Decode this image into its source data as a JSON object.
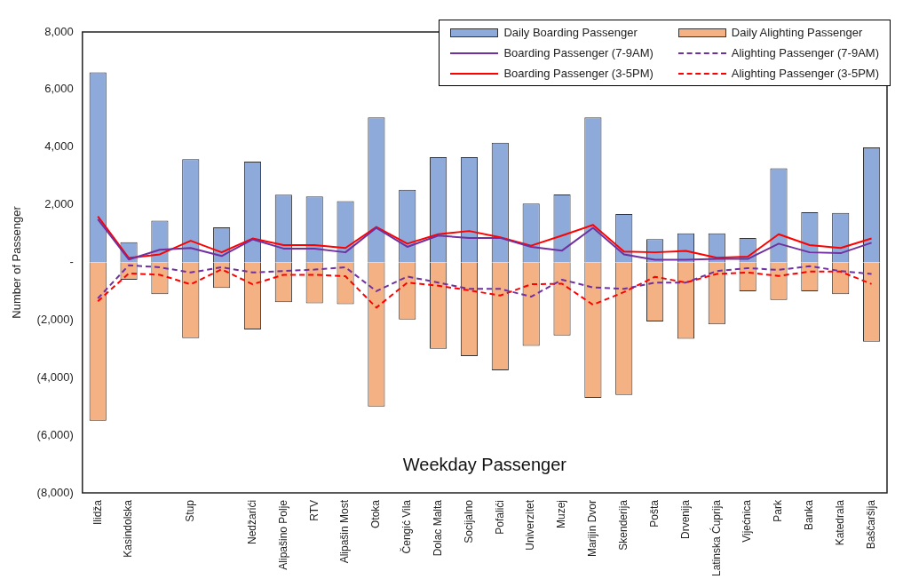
{
  "chart_data": {
    "type": "bar",
    "title": "Weekday Passenger",
    "ylabel": "Number of Passenger",
    "categories": [
      "Ilidža",
      "Kasindolska",
      null,
      "Stup",
      null,
      "Nedžarići",
      "Alipašino Polje",
      "RTV",
      "Alipašin Most",
      "Otoka",
      "Čengić Vila",
      "Dolac Malta",
      "Socijalno",
      "Pofalići",
      "Univerzitet",
      "Muzej",
      "Marijin Dvor",
      "Skenderija",
      "Pošta",
      "Drvenija",
      "Latinska Ćuprija",
      "Vijećnica",
      "Park",
      "Banka",
      "Katedrala",
      "Baščaršija"
    ],
    "series": [
      {
        "name": "Daily Boarding Passenger",
        "color": "#8eaadb",
        "values": [
          6600,
          700,
          1450,
          3580,
          1220,
          3500,
          2350,
          2290,
          2130,
          5030,
          2520,
          3650,
          3650,
          4150,
          2040,
          2360,
          5030,
          1680,
          810,
          1010,
          1010,
          850,
          3270,
          1740,
          1720,
          3990
        ]
      },
      {
        "name": "Daily Alighting Passenger",
        "color": "#f4b183",
        "values": [
          -5500,
          -600,
          -1100,
          -2630,
          -890,
          -2330,
          -1380,
          -1420,
          -1450,
          -5000,
          -1980,
          -3000,
          -3250,
          -3750,
          -2900,
          -2540,
          -4700,
          -4600,
          -2050,
          -2650,
          -2150,
          -1000,
          -1300,
          -1000,
          -1100,
          -2750
        ]
      },
      {
        "name": "Boarding Passenger (7-9AM)",
        "type": "line",
        "line_style": "solid",
        "color": "#7030a0",
        "values": [
          1500,
          100,
          440,
          500,
          220,
          800,
          480,
          480,
          350,
          1200,
          540,
          930,
          850,
          850,
          540,
          410,
          1200,
          280,
          90,
          90,
          120,
          120,
          650,
          350,
          320,
          680
        ]
      },
      {
        "name": "Alighting Passenger (7-9AM)",
        "type": "line",
        "line_style": "dashed",
        "color": "#7030a0",
        "values": [
          -1250,
          -100,
          -170,
          -350,
          -170,
          -350,
          -300,
          -250,
          -170,
          -1000,
          -490,
          -700,
          -920,
          -920,
          -1190,
          -600,
          -870,
          -920,
          -700,
          -700,
          -300,
          -200,
          -260,
          -130,
          -300,
          -400
        ]
      },
      {
        "name": "Boarding Passenger (3-5PM)",
        "type": "line",
        "line_style": "solid",
        "color": "#ff0000",
        "values": [
          1600,
          150,
          280,
          750,
          350,
          830,
          600,
          600,
          500,
          1230,
          650,
          980,
          1090,
          870,
          580,
          930,
          1300,
          380,
          350,
          400,
          160,
          200,
          980,
          600,
          500,
          830
        ]
      },
      {
        "name": "Alighting Passenger (3-5PM)",
        "type": "line",
        "line_style": "dashed",
        "color": "#ff0000",
        "values": [
          -1350,
          -380,
          -430,
          -760,
          -240,
          -760,
          -430,
          -430,
          -480,
          -1570,
          -700,
          -810,
          -970,
          -1150,
          -760,
          -740,
          -1470,
          -1030,
          -500,
          -700,
          -400,
          -350,
          -470,
          -320,
          -320,
          -750
        ]
      }
    ],
    "stacked": true,
    "marker": "none",
    "legend": "top right",
    "grid": false,
    "ylim": [
      -8000,
      8000
    ],
    "yticks": [
      {
        "value": 8000,
        "label": "8,000"
      },
      {
        "value": 6000,
        "label": "6,000"
      },
      {
        "value": 4000,
        "label": "4,000"
      },
      {
        "value": 2000,
        "label": "2,000"
      },
      {
        "value": 0,
        "label": "-"
      },
      {
        "value": -2000,
        "label": "(2,000)"
      },
      {
        "value": -4000,
        "label": "(4,000)"
      },
      {
        "value": -6000,
        "label": "(6,000)"
      },
      {
        "value": -8000,
        "label": "(8,000)"
      }
    ]
  }
}
